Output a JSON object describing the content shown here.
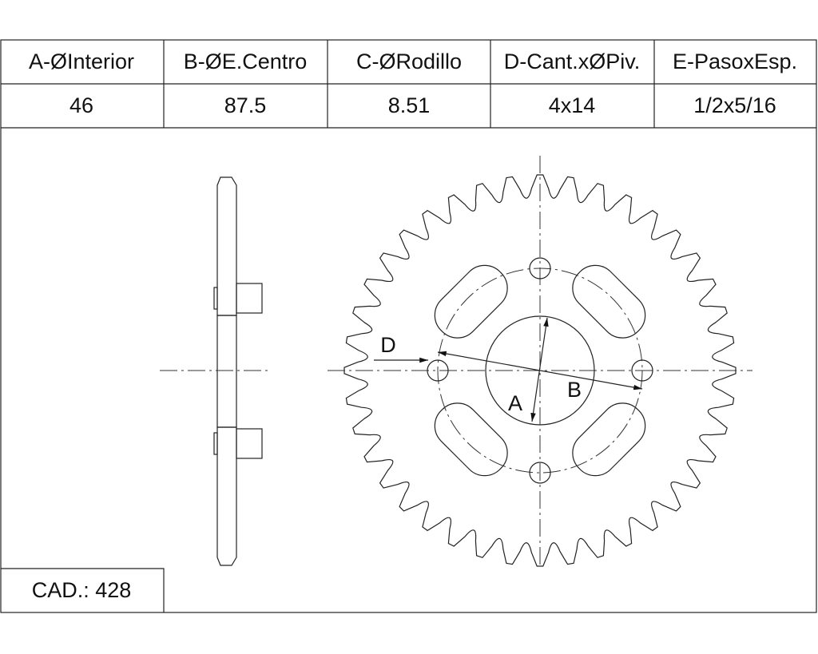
{
  "table": {
    "headers": [
      "A-ØInterior",
      "B-ØE.Centro",
      "C-ØRodillo",
      "D-Cant.xØPiv.",
      "E-PasoxEsp."
    ],
    "rows": [
      [
        "46",
        "87.5",
        "8.51",
        "4x14",
        "1/2x5/16"
      ]
    ]
  },
  "drawing": {
    "labels": {
      "a": "A",
      "b": "B",
      "d": "D"
    }
  },
  "footer": {
    "cad": "CAD.: 428"
  }
}
